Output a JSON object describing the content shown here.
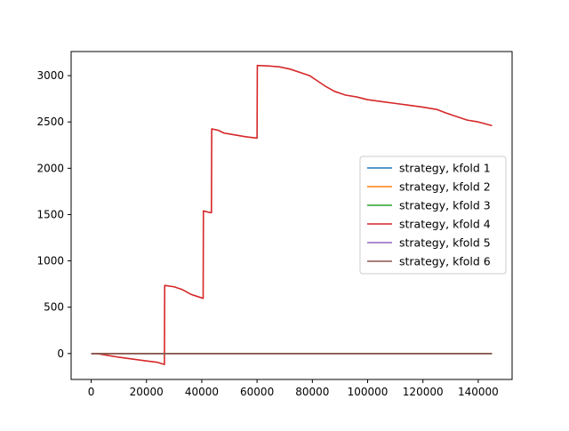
{
  "chart_data": {
    "type": "line",
    "title": "",
    "xlabel": "",
    "ylabel": "",
    "xlim": [
      -7250,
      152250
    ],
    "ylim": [
      -280,
      3260
    ],
    "xticks": [
      0,
      20000,
      40000,
      60000,
      80000,
      100000,
      120000,
      140000
    ],
    "yticks": [
      0,
      500,
      1000,
      1500,
      2000,
      2500,
      3000
    ],
    "grid": false,
    "legend_position": "center-right",
    "series": [
      {
        "name": "strategy, kfold 1",
        "color": "#1f77b4",
        "x": [
          0,
          145000
        ],
        "y": [
          0,
          0
        ]
      },
      {
        "name": "strategy, kfold 2",
        "color": "#ff7f0e",
        "x": [
          0,
          145000
        ],
        "y": [
          0,
          0
        ]
      },
      {
        "name": "strategy, kfold 3",
        "color": "#2ca02c",
        "x": [
          0,
          145000
        ],
        "y": [
          0,
          0
        ]
      },
      {
        "name": "strategy, kfold 4",
        "color": "#d62728",
        "x": [
          0,
          3000,
          6000,
          10000,
          15000,
          20000,
          24000,
          26500,
          26600,
          30000,
          33000,
          36000,
          38000,
          40500,
          40600,
          42500,
          43500,
          43600,
          46000,
          48000,
          52000,
          56000,
          60000,
          60100,
          64000,
          68000,
          72000,
          76000,
          79000,
          82000,
          85000,
          88000,
          92000,
          96000,
          100000,
          105000,
          110000,
          115000,
          120000,
          125000,
          128000,
          132000,
          136000,
          140000,
          145000
        ],
        "y": [
          0,
          -5,
          -20,
          -40,
          -60,
          -80,
          -95,
          -118,
          735,
          720,
          690,
          640,
          620,
          595,
          1540,
          1525,
          1520,
          2425,
          2410,
          2380,
          2360,
          2340,
          2325,
          3110,
          3105,
          3095,
          3070,
          3030,
          3000,
          2940,
          2880,
          2830,
          2790,
          2770,
          2740,
          2720,
          2700,
          2680,
          2660,
          2635,
          2600,
          2560,
          2520,
          2500,
          2460
        ]
      },
      {
        "name": "strategy, kfold 5",
        "color": "#9467bd",
        "x": [
          0,
          145000
        ],
        "y": [
          0,
          0
        ]
      },
      {
        "name": "strategy, kfold 6",
        "color": "#8c564b",
        "x": [
          0,
          145000
        ],
        "y": [
          0,
          0
        ]
      }
    ]
  }
}
